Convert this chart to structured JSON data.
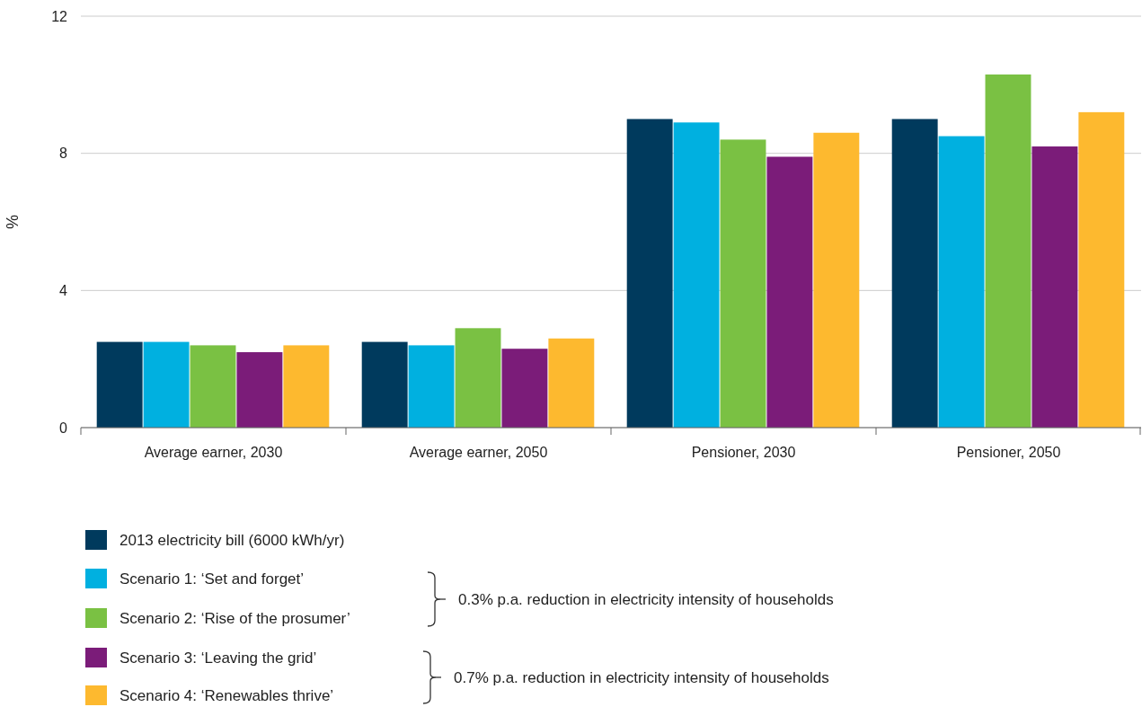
{
  "chart_data": {
    "type": "bar",
    "ylabel": "%",
    "categories": [
      "Average earner, 2030",
      "Average earner, 2050",
      "Pensioner, 2030",
      "Pensioner, 2050"
    ],
    "series": [
      {
        "name": "2013 electricity bill (6000 kWh/yr)",
        "color": "#003a5d",
        "values": [
          2.5,
          2.5,
          9.0,
          9.0
        ]
      },
      {
        "name": "Scenario 1: ‘Set and forget’",
        "color": "#00b0e0",
        "values": [
          2.5,
          2.4,
          8.9,
          8.5
        ]
      },
      {
        "name": "Scenario 2: ‘Rise of the prosumer’",
        "color": "#7ac143",
        "values": [
          2.4,
          2.9,
          8.4,
          10.3
        ]
      },
      {
        "name": "Scenario 3: ‘Leaving the grid’",
        "color": "#7b1c79",
        "values": [
          2.2,
          2.3,
          7.9,
          8.2
        ]
      },
      {
        "name": "Scenario 4: ‘Renewables thrive’",
        "color": "#fdb92f",
        "values": [
          2.4,
          2.6,
          8.6,
          9.2
        ]
      }
    ],
    "ylim": [
      0,
      12
    ],
    "yticks": [
      0,
      4,
      8,
      12
    ],
    "grid": "y",
    "legend": "bottom",
    "annotations": [
      "0.3% p.a. reduction in electricity intensity of households",
      "0.7% p.a. reduction in electricity intensity of households"
    ]
  }
}
